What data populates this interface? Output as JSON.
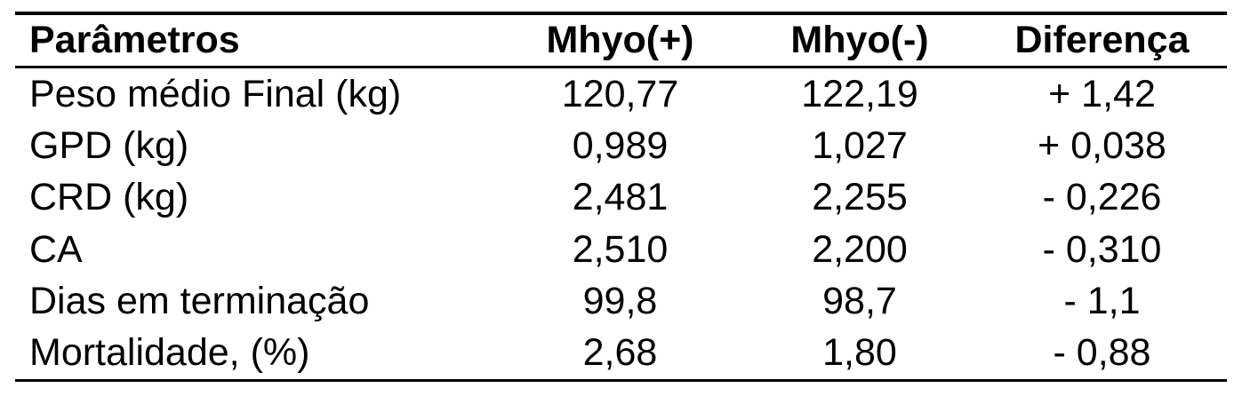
{
  "table": {
    "headers": [
      "Parâmetros",
      "Mhyo(+)",
      "Mhyo(-)",
      "Diferença"
    ],
    "rows": [
      [
        "Peso médio Final (kg)",
        "120,77",
        "122,19",
        "+ 1,42"
      ],
      [
        "GPD (kg)",
        "0,989",
        "1,027",
        "+ 0,038"
      ],
      [
        "CRD (kg)",
        "2,481",
        "2,255",
        "- 0,226"
      ],
      [
        "CA",
        "2,510",
        "2,200",
        "- 0,310"
      ],
      [
        "Dias em terminação",
        "99,8",
        "98,7",
        "- 1,1"
      ],
      [
        "Mortalidade, (%)",
        "2,68",
        "1,80",
        "- 0,88"
      ]
    ]
  }
}
